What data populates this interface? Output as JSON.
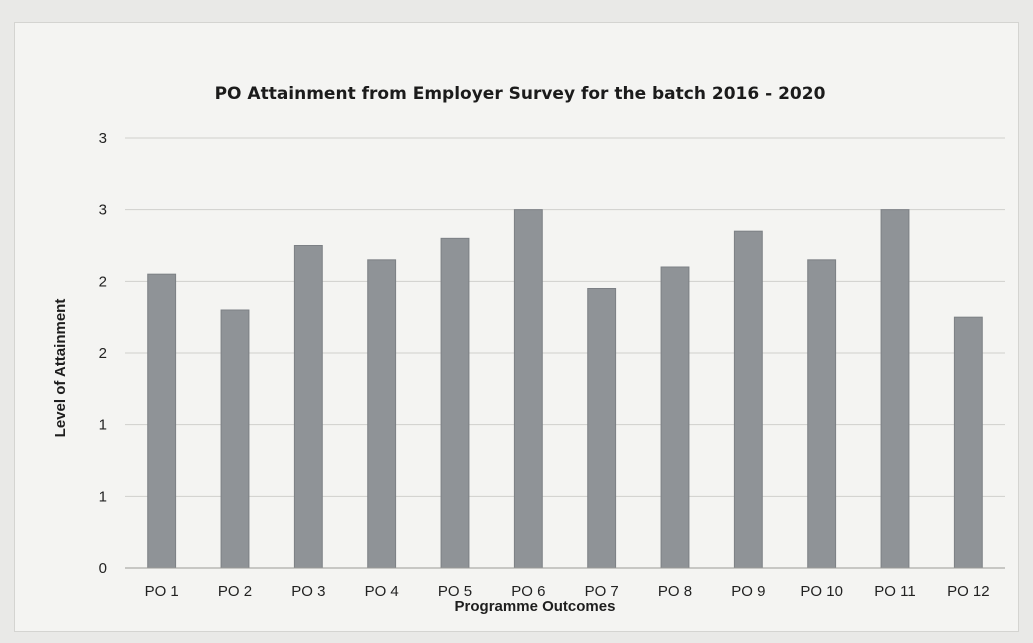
{
  "chart_data": {
    "type": "bar",
    "title": "PO Attainment from Employer Survey for the batch 2016 - 2020",
    "xlabel": "Programme Outcomes",
    "ylabel": "Level of Attainment",
    "categories": [
      "PO 1",
      "PO 2",
      "PO 3",
      "PO 4",
      "PO 5",
      "PO 6",
      "PO 7",
      "PO 8",
      "PO 9",
      "PO 10",
      "PO 11",
      "PO 12"
    ],
    "values": [
      2.05,
      1.8,
      2.25,
      2.15,
      2.3,
      2.5,
      1.95,
      2.1,
      2.35,
      2.15,
      2.5,
      1.75
    ],
    "ylim": [
      0,
      3
    ],
    "ytick_values": [
      0,
      0.5,
      1,
      1.5,
      2,
      2.5,
      3
    ],
    "ytick_labels": [
      "0",
      "1",
      "1",
      "2",
      "2",
      "3",
      "3"
    ],
    "grid": true,
    "legend": "none",
    "bar_color": "#8f9397"
  }
}
